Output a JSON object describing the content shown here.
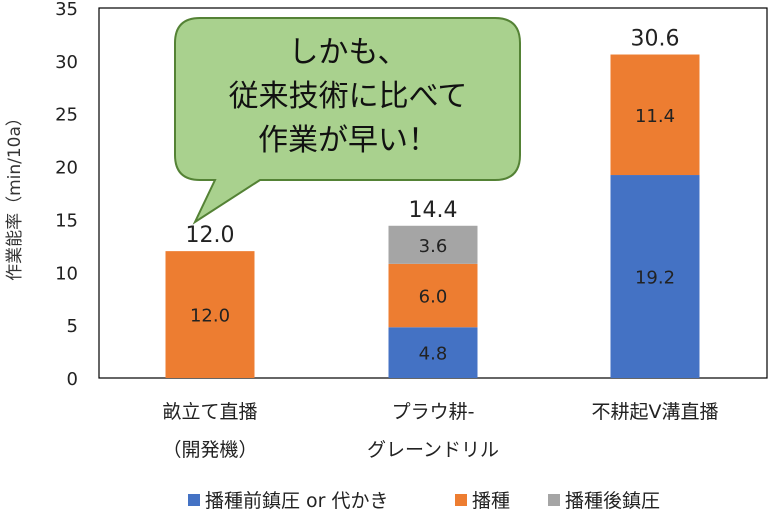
{
  "chart_data": {
    "type": "bar",
    "stacked": true,
    "title": "",
    "xlabel": "",
    "ylabel": "作業能率（min/10a）",
    "ylim": [
      0,
      35
    ],
    "yticks": [
      0,
      5,
      10,
      15,
      20,
      25,
      30,
      35
    ],
    "grid": false,
    "legend_position": "bottom",
    "categories": [
      [
        "畝立て直播",
        "（開発機）"
      ],
      [
        "プラウ耕-",
        "グレーンドリル"
      ],
      [
        "不耕起V溝直播"
      ]
    ],
    "series": [
      {
        "name": "播種前鎮圧 or 代かき",
        "color": "#4472c4",
        "values": [
          0,
          4.8,
          19.2
        ],
        "labels": [
          "",
          "4.8",
          "19.2"
        ]
      },
      {
        "name": "播種",
        "color": "#ed7d31",
        "values": [
          12.0,
          6.0,
          11.4
        ],
        "labels": [
          "12.0",
          "6.0",
          "11.4"
        ]
      },
      {
        "name": "播種後鎮圧",
        "color": "#a5a5a5",
        "values": [
          0,
          3.6,
          0
        ],
        "labels": [
          "",
          "3.6",
          ""
        ]
      }
    ],
    "totals": [
      "12.0",
      "14.4",
      "30.6"
    ],
    "annotation": {
      "lines": [
        "しかも、",
        "従来技術に比べて",
        "作業が早い！"
      ],
      "fill": "#a9d18e",
      "stroke": "#548235"
    }
  }
}
